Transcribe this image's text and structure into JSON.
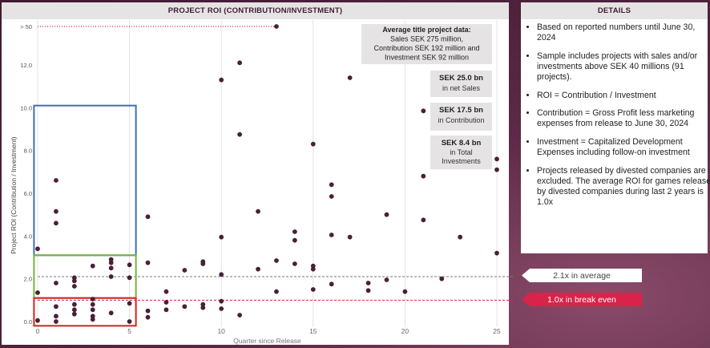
{
  "left_panel": {
    "title": "PROJECT ROI (CONTRIBUTION/INVESTMENT)"
  },
  "right_panel": {
    "title": "DETAILS",
    "bullets": [
      "Based on reported numbers until June 30, 2024",
      "Sample includes projects with sales and/or investments above SEK 40 millions (91 projects).",
      "ROI = Contribution / Investment",
      "Contribution = Gross Profit less marketing expenses from release to June 30, 2024",
      "Investment = Capitalized Development Expenses including follow-on investment",
      "Projects released by divested companies are excluded. The average ROI for games released by divested companies during last 2 years is 1.0x"
    ]
  },
  "callouts": {
    "average": "2.1x in average",
    "break_even": "1.0x in break even"
  },
  "colors": {
    "dot": "#4a1f38",
    "avg_line": "#7a7a7a",
    "break_even_line": "#d9234a",
    "box_blue": "#3e6fb5",
    "box_green": "#74b33f",
    "box_red": "#d92020",
    "annotation_bg": "#e6e3e5"
  },
  "chart_data": {
    "type": "scatter",
    "xlabel": "Quarter since Release",
    "ylabel": "Project ROI (Contribution / Investment)",
    "xlim": [
      0,
      25
    ],
    "ylim": [
      0,
      13.8
    ],
    "x_ticks": [
      0,
      5,
      10,
      15,
      20,
      25
    ],
    "x_tick_labels": [
      "0",
      "5",
      "10",
      "15",
      "20",
      "25"
    ],
    "y_ticks": [
      0,
      2,
      4,
      6,
      8,
      10,
      12,
      13.8
    ],
    "y_tick_labels": [
      "0.0",
      "2.0",
      "4.0",
      "6.0",
      "8.0",
      "10.0",
      "12.0",
      "> 50"
    ],
    "grid": "vertical",
    "average": 2.1,
    "break_even": 1.0,
    "overflow_value": 13.8,
    "overflow_from_x": 0,
    "overflow_to_x": 13,
    "highlight_boxes": [
      {
        "color": "blue",
        "x": [
          -0.2,
          5.35
        ],
        "y": [
          3.1,
          10.1
        ]
      },
      {
        "color": "green",
        "x": [
          -0.2,
          5.35
        ],
        "y": [
          1.1,
          3.1
        ]
      },
      {
        "color": "red",
        "x": [
          -0.2,
          5.35
        ],
        "y": [
          -0.2,
          1.1
        ]
      }
    ],
    "annotations": {
      "header_lines": [
        "Average title project data:",
        "Sales SEK 275 million,",
        "Contribution SEK 192 million and",
        "Investment SEK 92 million"
      ],
      "boxes": [
        {
          "value": "SEK 25.0 bn",
          "label": "in net Sales"
        },
        {
          "value": "SEK 17.5 bn",
          "label": "in Contribution"
        },
        {
          "value": "SEK 8.4 bn",
          "label": "in Total Investments"
        }
      ]
    },
    "points": [
      [
        0,
        3.4
      ],
      [
        0,
        1.35
      ],
      [
        0,
        0.05
      ],
      [
        1,
        6.6
      ],
      [
        1,
        5.15
      ],
      [
        1,
        4.6
      ],
      [
        1,
        1.8
      ],
      [
        1,
        0.7
      ],
      [
        1,
        0.25
      ],
      [
        1,
        0.0
      ],
      [
        2,
        2.05
      ],
      [
        2,
        1.9
      ],
      [
        2,
        1.65
      ],
      [
        2,
        0.8
      ],
      [
        2,
        0.55
      ],
      [
        2,
        0.35
      ],
      [
        3,
        2.6
      ],
      [
        3,
        1.05
      ],
      [
        3,
        0.8
      ],
      [
        3,
        0.55
      ],
      [
        3,
        0.25
      ],
      [
        3,
        0.1
      ],
      [
        4,
        2.9
      ],
      [
        4,
        2.75
      ],
      [
        4,
        2.5
      ],
      [
        4,
        2.1
      ],
      [
        4,
        0.4
      ],
      [
        5,
        2.65
      ],
      [
        5,
        2.05
      ],
      [
        5,
        0.85
      ],
      [
        5,
        0.0
      ],
      [
        6,
        4.9
      ],
      [
        6,
        2.75
      ],
      [
        6,
        0.5
      ],
      [
        6,
        0.2
      ],
      [
        7,
        1.4
      ],
      [
        7,
        0.9
      ],
      [
        7,
        0.55
      ],
      [
        8,
        2.4
      ],
      [
        8,
        0.7
      ],
      [
        9,
        2.8
      ],
      [
        9,
        2.7
      ],
      [
        9,
        0.8
      ],
      [
        9,
        0.65
      ],
      [
        10,
        11.3
      ],
      [
        10,
        3.95
      ],
      [
        10,
        2.2
      ],
      [
        10,
        0.95
      ],
      [
        10,
        0.6
      ],
      [
        11,
        12.1
      ],
      [
        11,
        8.75
      ],
      [
        11,
        0.3
      ],
      [
        12,
        5.15
      ],
      [
        12,
        2.45
      ],
      [
        13,
        13.8
      ],
      [
        13,
        2.85
      ],
      [
        13,
        1.4
      ],
      [
        14,
        4.2
      ],
      [
        14,
        3.8
      ],
      [
        14,
        2.7
      ],
      [
        15,
        8.3
      ],
      [
        15,
        2.6
      ],
      [
        15,
        2.45
      ],
      [
        15,
        1.5
      ],
      [
        16,
        6.4
      ],
      [
        16,
        5.85
      ],
      [
        16,
        4.05
      ],
      [
        16,
        1.75
      ],
      [
        17,
        11.4
      ],
      [
        17,
        3.95
      ],
      [
        18,
        1.8
      ],
      [
        18,
        1.45
      ],
      [
        19,
        5.0
      ],
      [
        19,
        1.95
      ],
      [
        20,
        1.4
      ],
      [
        21,
        9.85
      ],
      [
        21,
        6.8
      ],
      [
        21,
        4.75
      ],
      [
        22,
        2.0
      ],
      [
        23,
        3.95
      ],
      [
        25,
        7.6
      ],
      [
        25,
        7.1
      ],
      [
        25,
        3.2
      ]
    ]
  }
}
